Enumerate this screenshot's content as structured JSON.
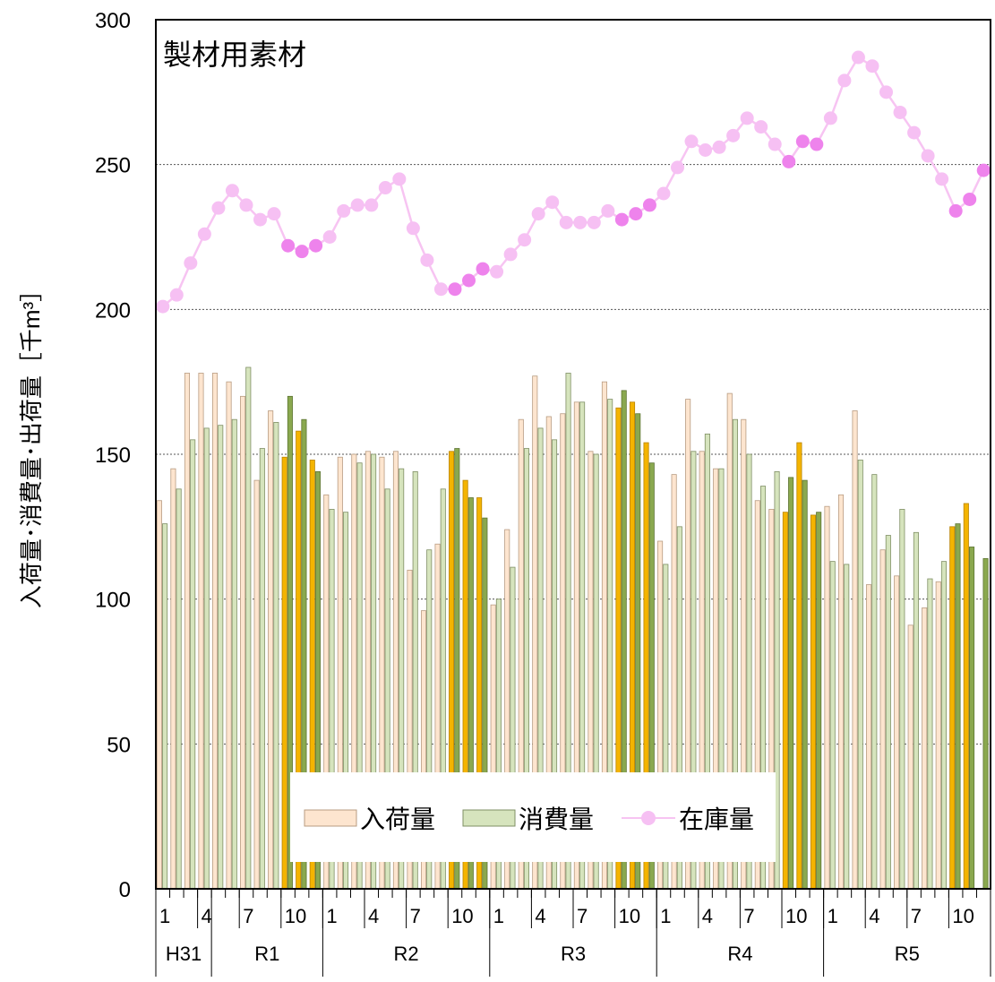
{
  "chart_data": {
    "type": "bar",
    "title": "製材用素材",
    "ylabel": "入荷量･消費量･出荷量［千m³］",
    "ylim": [
      0,
      300
    ],
    "y_ticks": [
      "0",
      "50",
      "100",
      "150",
      "200",
      "250",
      "300"
    ],
    "grid": "horizontal-dotted",
    "legend_position": "bottom-center",
    "colors": {
      "arrival": "#fde5cf",
      "arrival_highlight": "#f4b400",
      "consumption": "#d6e4bd",
      "consumption_highlight": "#8aa84f",
      "stock_line": "#f7c4f2",
      "stock_marker": "#f6c0f3",
      "stock_marker_highlight": "#ee83ec"
    },
    "month_tick_labels": [
      "1",
      "4",
      "7",
      "10"
    ],
    "eras": [
      {
        "label": "H31",
        "start": 0,
        "months": 4
      },
      {
        "label": "R1",
        "start": 4,
        "months": 8
      },
      {
        "label": "R2",
        "start": 12,
        "months": 12
      },
      {
        "label": "R3",
        "start": 24,
        "months": 12
      },
      {
        "label": "R4",
        "start": 36,
        "months": 12
      },
      {
        "label": "R5",
        "start": 48,
        "months": 12
      }
    ],
    "highlight_months": [
      9,
      10,
      11,
      21,
      22,
      23,
      33,
      34,
      35,
      45,
      46,
      47,
      57,
      58,
      59
    ],
    "series": [
      {
        "name": "入荷量",
        "type": "bar",
        "values": [
          134,
          145,
          178,
          178,
          178,
          175,
          170,
          141,
          165,
          149,
          158,
          148,
          136,
          149,
          150,
          151,
          149,
          151,
          110,
          96,
          119,
          151,
          141,
          135,
          98,
          124,
          162,
          177,
          163,
          164,
          168,
          151,
          175,
          166,
          168,
          154,
          120,
          143,
          169,
          151,
          145,
          171,
          162,
          134,
          131,
          130,
          154,
          129,
          132,
          136,
          165,
          105,
          117,
          108,
          91,
          97,
          106,
          125,
          133,
          0
        ]
      },
      {
        "name": "消費量",
        "type": "bar",
        "values": [
          126,
          138,
          155,
          159,
          160,
          162,
          180,
          152,
          161,
          170,
          162,
          144,
          131,
          130,
          147,
          150,
          138,
          145,
          144,
          117,
          138,
          152,
          135,
          128,
          100,
          111,
          152,
          159,
          155,
          178,
          168,
          150,
          169,
          172,
          164,
          147,
          112,
          125,
          151,
          157,
          145,
          162,
          150,
          139,
          144,
          142,
          141,
          130,
          113,
          112,
          148,
          143,
          122,
          131,
          123,
          107,
          113,
          126,
          118,
          114
        ]
      },
      {
        "name": "在庫量",
        "type": "line",
        "values": [
          201,
          205,
          216,
          226,
          235,
          241,
          236,
          231,
          233,
          222,
          220,
          222,
          225,
          234,
          236,
          236,
          242,
          245,
          228,
          217,
          207,
          207,
          210,
          214,
          213,
          219,
          224,
          233,
          237,
          230,
          230,
          230,
          234,
          231,
          233,
          236,
          240,
          249,
          258,
          255,
          256,
          260,
          266,
          263,
          257,
          251,
          258,
          257,
          266,
          279,
          287,
          284,
          275,
          268,
          261,
          253,
          245,
          234,
          238,
          248
        ]
      }
    ]
  }
}
